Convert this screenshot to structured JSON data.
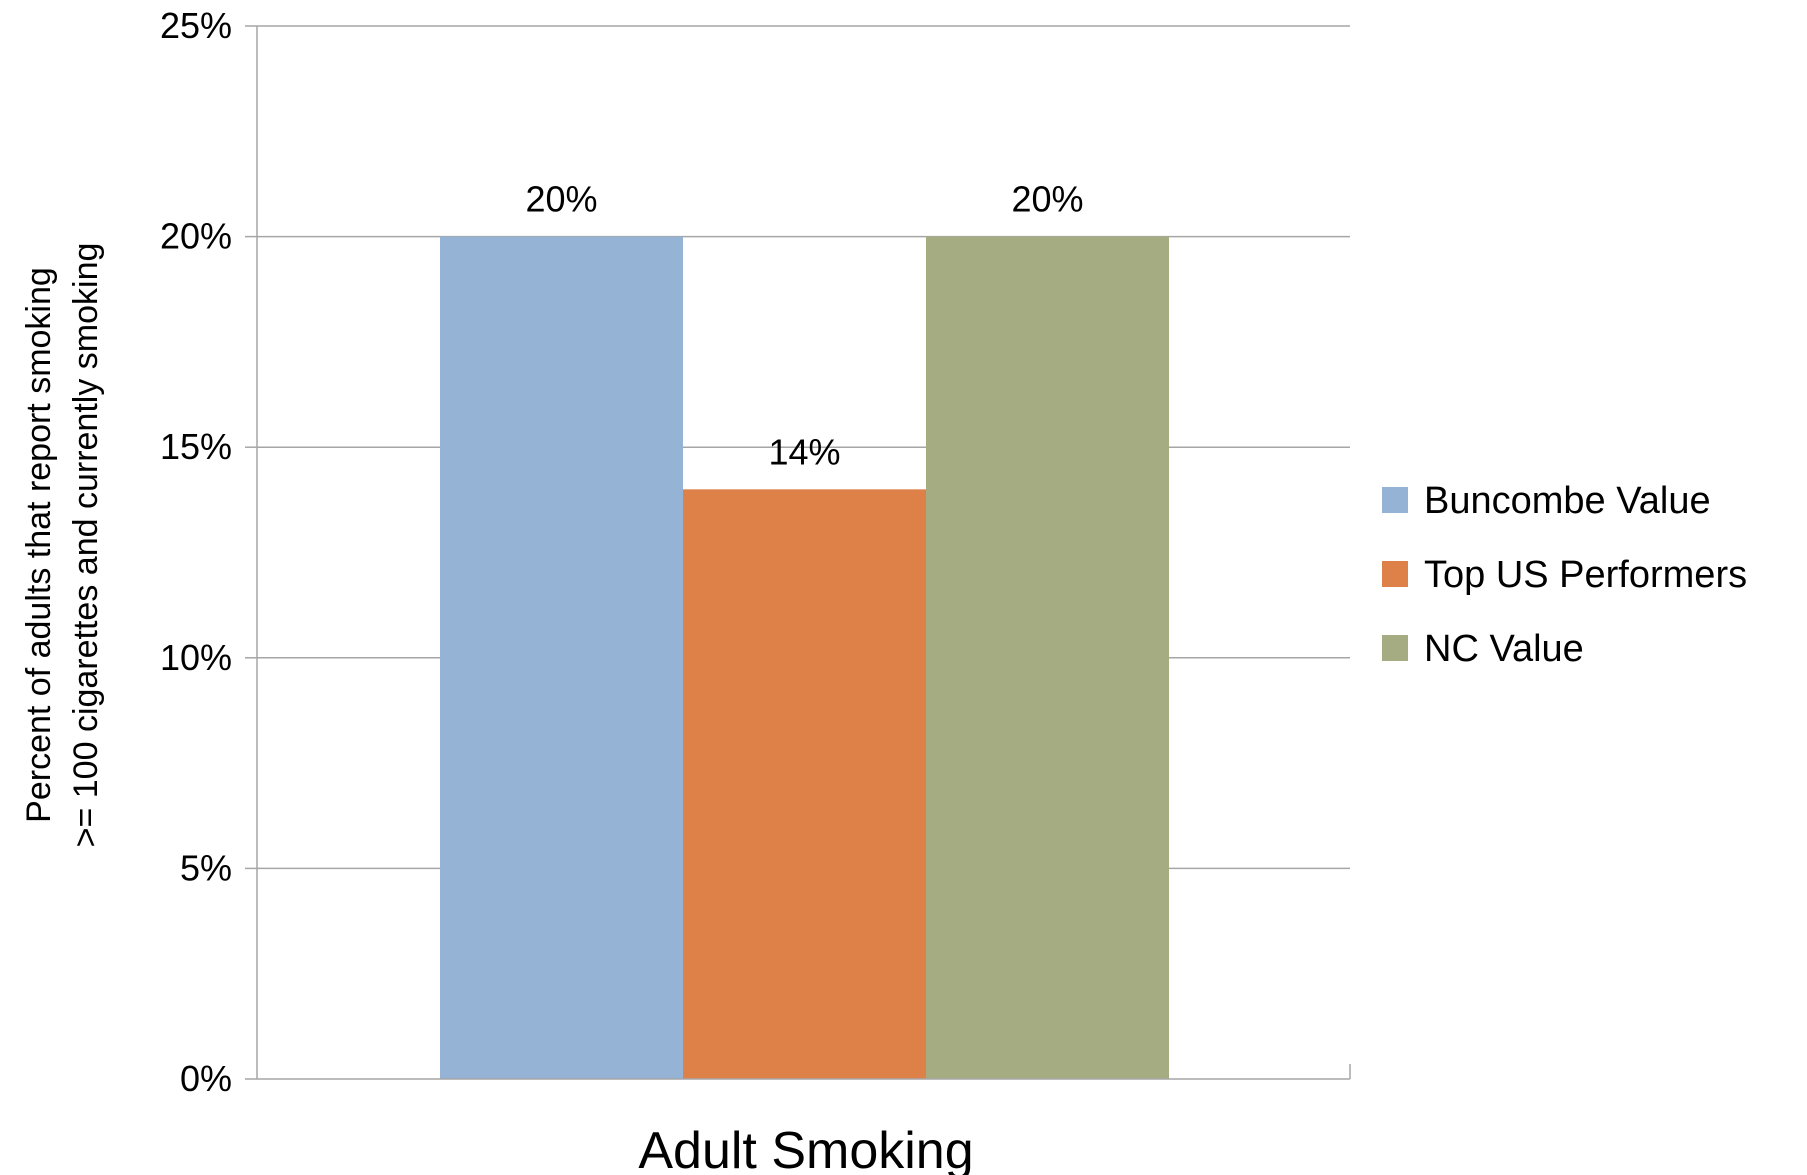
{
  "chart_data": {
    "type": "bar",
    "categories": [
      "Adult Smoking"
    ],
    "series": [
      {
        "name": "Buncombe Value",
        "values": [
          20
        ],
        "color": "#95b3d4"
      },
      {
        "name": "Top US Performers",
        "values": [
          14
        ],
        "color": "#de8149"
      },
      {
        "name": "NC Value",
        "values": [
          20
        ],
        "color": "#a5ac82"
      }
    ],
    "data_labels": [
      "20%",
      "14%",
      "20%"
    ],
    "title": "",
    "xlabel": "",
    "ylabel_lines": [
      "Percent of adults that report smoking",
      ">= 100 cigarettes and currently smoking"
    ],
    "ylim": [
      0,
      25
    ],
    "yticks": [
      0,
      5,
      10,
      15,
      20,
      25
    ],
    "ytick_labels": [
      "0%",
      "5%",
      "10%",
      "15%",
      "20%",
      "25%"
    ],
    "grid": true,
    "legend_position": "right",
    "gridline_color": "#a6a6a6"
  }
}
